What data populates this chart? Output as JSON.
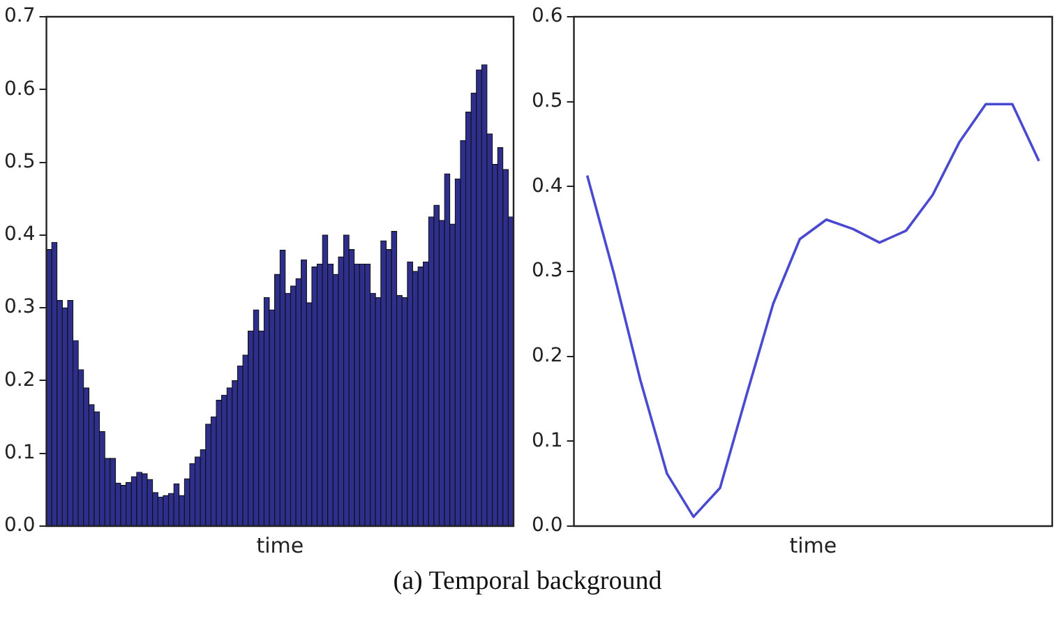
{
  "chart_data": [
    {
      "type": "bar",
      "xlabel": "time",
      "categories": [
        null,
        null,
        null,
        null,
        null,
        null,
        null,
        null,
        null,
        null,
        null,
        null,
        null,
        null,
        null,
        null,
        null,
        null,
        null,
        null,
        null,
        null,
        null,
        null,
        null,
        null,
        null,
        null,
        null,
        null,
        null,
        null,
        null,
        null,
        null,
        null,
        null,
        null,
        null,
        null,
        null,
        null,
        null,
        null,
        null,
        null,
        null,
        null,
        null,
        null,
        null,
        null,
        null,
        null,
        null,
        null,
        null,
        null,
        null,
        null,
        null,
        null,
        null,
        null,
        null,
        null,
        null,
        null,
        null,
        null,
        null,
        null,
        null,
        null,
        null,
        null,
        null,
        null,
        null,
        null,
        null,
        null,
        null,
        null,
        null,
        null,
        null,
        null
      ],
      "values": [
        0.38,
        0.39,
        0.31,
        0.3,
        0.31,
        0.255,
        0.215,
        0.19,
        0.167,
        0.157,
        0.13,
        0.093,
        0.093,
        0.059,
        0.056,
        0.06,
        0.068,
        0.074,
        0.072,
        0.064,
        0.046,
        0.04,
        0.042,
        0.045,
        0.058,
        0.042,
        0.065,
        0.086,
        0.095,
        0.105,
        0.14,
        0.15,
        0.173,
        0.18,
        0.19,
        0.2,
        0.22,
        0.235,
        0.268,
        0.297,
        0.268,
        0.314,
        0.297,
        0.346,
        0.379,
        0.32,
        0.33,
        0.34,
        0.366,
        0.307,
        0.356,
        0.36,
        0.4,
        0.36,
        0.346,
        0.37,
        0.4,
        0.38,
        0.36,
        0.36,
        0.36,
        0.32,
        0.314,
        0.392,
        0.38,
        0.405,
        0.317,
        0.314,
        0.363,
        0.35,
        0.356,
        0.363,
        0.425,
        0.441,
        0.42,
        0.484,
        0.415,
        0.477,
        0.53,
        0.569,
        0.595,
        0.627,
        0.634,
        0.539,
        0.497,
        0.52,
        0.49,
        0.425
      ],
      "color": "#2e2e8c",
      "ylim": [
        0,
        0.7
      ],
      "yticks": [
        {
          "value": 0,
          "label": "0.0"
        },
        {
          "value": 0.1,
          "label": "0.1"
        },
        {
          "value": 0.2,
          "label": "0.2"
        },
        {
          "value": 0.3,
          "label": "0.3"
        },
        {
          "value": 0.4,
          "label": "0.4"
        },
        {
          "value": 0.5,
          "label": "0.5"
        },
        {
          "value": 0.6,
          "label": "0.6"
        },
        {
          "value": 0.7,
          "label": "0.7"
        }
      ],
      "grid": false,
      "legend": false,
      "tick_labels": "y",
      "annotations": [
        "(a) Temporal background"
      ]
    },
    {
      "type": "line",
      "xlabel": "time",
      "categories": [
        null,
        null,
        null,
        null,
        null,
        null,
        null,
        null,
        null,
        null,
        null,
        null,
        null,
        null,
        null,
        null,
        null,
        null
      ],
      "values": [
        0.413,
        0.298,
        0.172,
        0.062,
        0.011,
        0.045,
        0.155,
        0.262,
        0.338,
        0.361,
        0.35,
        0.334,
        0.348,
        0.39,
        0.452,
        0.497,
        0.497,
        0.43
      ],
      "color": "#4a4ad0",
      "ylim": [
        0,
        0.6
      ],
      "yticks": [
        {
          "value": 0,
          "label": "0.0"
        },
        {
          "value": 0.1,
          "label": "0.1"
        },
        {
          "value": 0.2,
          "label": "0.2"
        },
        {
          "value": 0.3,
          "label": "0.3"
        },
        {
          "value": 0.4,
          "label": "0.4"
        },
        {
          "value": 0.5,
          "label": "0.5"
        },
        {
          "value": 0.6,
          "label": "0.6"
        }
      ],
      "grid": false,
      "legend": false,
      "tick_labels": "y",
      "marker": "none"
    }
  ]
}
